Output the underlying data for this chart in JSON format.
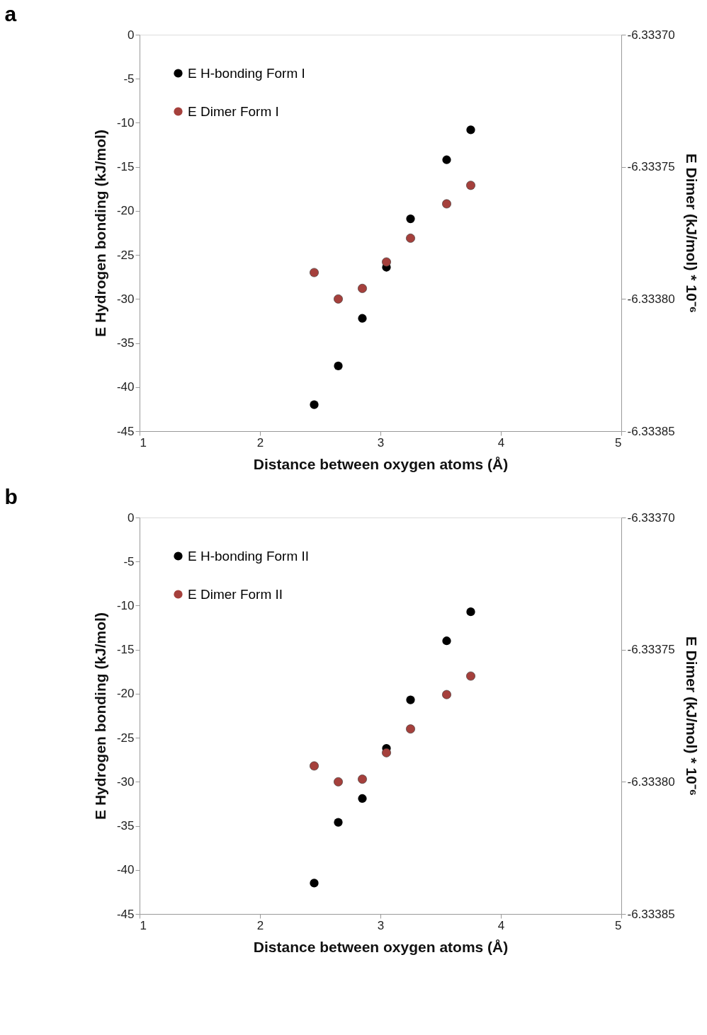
{
  "chart_data": [
    {
      "type": "scatter",
      "title": "a",
      "xlabel": "Distance between oxygen atoms (Å)",
      "ylabel": "E Hydrogen bonding (kJ/mol)",
      "y2label": "E Dimer (kJ/mol) * 10⁻⁶",
      "x": [
        2.45,
        2.65,
        2.85,
        3.05,
        3.25,
        3.55,
        3.75
      ],
      "series": [
        {
          "name": "E H-bonding Form I",
          "color": "#000000",
          "values": [
            -42.0,
            -37.6,
            -32.2,
            -26.4,
            -20.9,
            -14.2,
            -10.8
          ]
        },
        {
          "name": "E Dimer Form I",
          "color": "#a5403c",
          "axis": "y2",
          "values": [
            -6.33379,
            -6.3338,
            -6.333796,
            -6.333786,
            -6.333777,
            -6.333764,
            -6.333757
          ]
        }
      ],
      "xlim": [
        1,
        5
      ],
      "xticks": [
        1,
        2,
        3,
        4,
        5
      ],
      "ylim": [
        -45,
        0
      ],
      "yticks": [
        -45,
        -40,
        -35,
        -30,
        -25,
        -20,
        -15,
        -10,
        -5,
        0
      ],
      "y2lim": [
        -6.33385,
        -6.3337
      ],
      "y2ticks": [
        {
          "value": -6.33385,
          "label": "-6.33385"
        },
        {
          "value": -6.3338,
          "label": "-6.33380"
        },
        {
          "value": -6.33375,
          "label": "-6.33375"
        },
        {
          "value": -6.3337,
          "label": "-6.33370"
        }
      ],
      "grid": false,
      "legend": "top left",
      "marker": "circle"
    },
    {
      "type": "scatter",
      "title": "b",
      "xlabel": "Distance between oxygen atoms (Å)",
      "ylabel": "E Hydrogen bonding (kJ/mol)",
      "y2label": "E Dimer (kJ/mol) * 10⁻⁶",
      "x": [
        2.45,
        2.65,
        2.85,
        3.05,
        3.25,
        3.55,
        3.75
      ],
      "series": [
        {
          "name": "E H-bonding Form II",
          "color": "#000000",
          "values": [
            -41.5,
            -34.6,
            -31.9,
            -26.2,
            -20.7,
            -14.0,
            -10.7
          ]
        },
        {
          "name": "E Dimer Form II",
          "color": "#a5403c",
          "axis": "y2",
          "values": [
            -6.333794,
            -6.3338,
            -6.333799,
            -6.333789,
            -6.33378,
            -6.333767,
            -6.33376
          ]
        }
      ],
      "xlim": [
        1,
        5
      ],
      "xticks": [
        1,
        2,
        3,
        4,
        5
      ],
      "ylim": [
        -45,
        0
      ],
      "yticks": [
        -45,
        -40,
        -35,
        -30,
        -25,
        -20,
        -15,
        -10,
        -5,
        0
      ],
      "y2lim": [
        -6.33385,
        -6.3337
      ],
      "y2ticks": [
        {
          "value": -6.33385,
          "label": "-6.33385"
        },
        {
          "value": -6.3338,
          "label": "-6.33380"
        },
        {
          "value": -6.33375,
          "label": "-6.33375"
        },
        {
          "value": -6.3337,
          "label": "-6.33370"
        }
      ],
      "grid": false,
      "legend": "top left",
      "marker": "circle"
    }
  ]
}
